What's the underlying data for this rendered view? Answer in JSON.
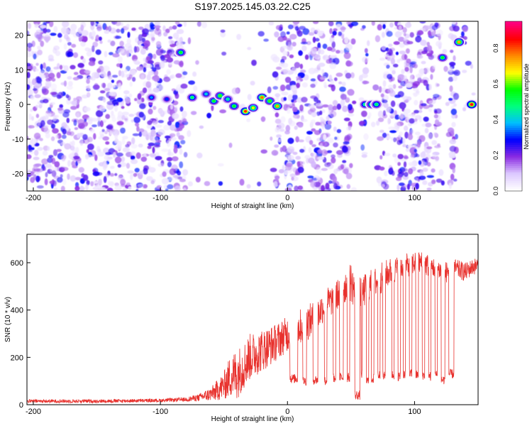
{
  "figure": {
    "title": "S197.2025.145.03.22.C25"
  },
  "chart_data": [
    {
      "type": "heatmap",
      "title": "S197.2025.145.03.22.C25",
      "xlabel": "Height of straight line (km)",
      "ylabel": "Frequency (Hz)",
      "xlim": [
        -205,
        150
      ],
      "ylim": [
        -25,
        24
      ],
      "xticks": [
        -200,
        -100,
        0,
        100
      ],
      "yticks": [
        -20,
        -10,
        0,
        10,
        20
      ],
      "grid": false,
      "colorbar": {
        "label": "Normalized spectral amplitude",
        "range": [
          0.0,
          0.95
        ],
        "ticks": [
          0.0,
          0.2,
          0.4,
          0.6,
          0.8
        ],
        "colors": [
          "#ffffff",
          "#dcc8ff",
          "#8a2be2",
          "#0000ff",
          "#00bfff",
          "#00ff7f",
          "#00ff00",
          "#ffff00",
          "#ff8c00",
          "#ff0000",
          "#ff0080"
        ]
      },
      "noise_gaps_x": [
        [
          -80,
          -10
        ],
        [
          50,
          58
        ],
        [
          62,
          72
        ],
        [
          120,
          128
        ],
        [
          133,
          138
        ],
        [
          140,
          150
        ]
      ],
      "features": [
        {
          "x": -107,
          "freq": 2,
          "amplitude": 0.35
        },
        {
          "x": -95,
          "freq": 1.5,
          "amplitude": 0.3
        },
        {
          "x": -84,
          "freq": 15,
          "amplitude": 0.55
        },
        {
          "x": -75,
          "freq": 2,
          "amplitude": 0.5
        },
        {
          "x": -64,
          "freq": 3,
          "amplitude": 0.4
        },
        {
          "x": -58,
          "freq": 1,
          "amplitude": 0.55
        },
        {
          "x": -53,
          "freq": 2.5,
          "amplitude": 0.6
        },
        {
          "x": -47,
          "freq": 1.5,
          "amplitude": 0.45
        },
        {
          "x": -42,
          "freq": -0.5,
          "amplitude": 0.55
        },
        {
          "x": -33,
          "freq": -2,
          "amplitude": 0.85
        },
        {
          "x": -27,
          "freq": -1,
          "amplitude": 0.7
        },
        {
          "x": -20,
          "freq": 2,
          "amplitude": 0.8
        },
        {
          "x": -14,
          "freq": 1,
          "amplitude": 0.6
        },
        {
          "x": -8,
          "freq": -0.5,
          "amplitude": 0.75
        },
        {
          "x": 61,
          "freq": 0,
          "amplitude": 0.5
        },
        {
          "x": 66,
          "freq": 0,
          "amplitude": 0.55
        },
        {
          "x": 70,
          "freq": 0,
          "amplitude": 0.5
        },
        {
          "x": 122,
          "freq": 13.5,
          "amplitude": 0.55
        },
        {
          "x": 135,
          "freq": 18,
          "amplitude": 0.75
        },
        {
          "x": 145,
          "freq": 0,
          "amplitude": 0.9
        }
      ]
    },
    {
      "type": "line",
      "xlabel": "Height of straight line (km)",
      "ylabel": "SNR (10 * v/v)",
      "xlim": [
        -205,
        150
      ],
      "ylim": [
        0,
        720
      ],
      "xticks": [
        -200,
        -100,
        0,
        100
      ],
      "yticks": [
        0,
        200,
        400,
        600
      ],
      "grid": false,
      "color": "#e8322e",
      "envelope": {
        "x": [
          -205,
          -150,
          -100,
          -80,
          -70,
          -60,
          -50,
          -45,
          -40,
          -35,
          -30,
          -20,
          -10,
          0,
          10,
          20,
          25,
          30,
          35,
          40,
          45,
          50,
          55,
          60,
          65,
          70,
          75,
          80,
          85,
          90,
          95,
          100,
          105,
          110,
          115,
          120,
          125,
          130,
          135,
          140,
          145,
          150
        ],
        "base": [
          15,
          15,
          18,
          22,
          30,
          45,
          80,
          120,
          130,
          160,
          200,
          230,
          260,
          300,
          330,
          360,
          390,
          430,
          440,
          470,
          500,
          520,
          460,
          480,
          500,
          520,
          540,
          560,
          570,
          580,
          590,
          600,
          600,
          590,
          580,
          570,
          560,
          580,
          570,
          560,
          580,
          590
        ],
        "amp": [
          15,
          15,
          15,
          18,
          30,
          60,
          120,
          180,
          220,
          200,
          200,
          180,
          160,
          150,
          150,
          150,
          140,
          130,
          130,
          130,
          150,
          170,
          150,
          140,
          140,
          130,
          130,
          120,
          110,
          110,
          100,
          100,
          100,
          100,
          90,
          90,
          90,
          80,
          80,
          80,
          70,
          70
        ]
      },
      "drops": [
        [
          2,
          8,
          110
        ],
        [
          12,
          15,
          100
        ],
        [
          20,
          24,
          105
        ],
        [
          29,
          31,
          100
        ],
        [
          36,
          38,
          110
        ],
        [
          41,
          44,
          115
        ],
        [
          47,
          49,
          115
        ],
        [
          53,
          57,
          40
        ],
        [
          58,
          59,
          130
        ],
        [
          62,
          64,
          100
        ],
        [
          66,
          68,
          110
        ],
        [
          71,
          73,
          125
        ],
        [
          75,
          77,
          120
        ],
        [
          82,
          84,
          125
        ],
        [
          87,
          89,
          120
        ],
        [
          91,
          93,
          130
        ],
        [
          96,
          98,
          130
        ],
        [
          101,
          103,
          125
        ],
        [
          106,
          108,
          125
        ],
        [
          111,
          113,
          120
        ],
        [
          116,
          118,
          125
        ],
        [
          121,
          124,
          105
        ],
        [
          127,
          131,
          130
        ]
      ]
    }
  ]
}
